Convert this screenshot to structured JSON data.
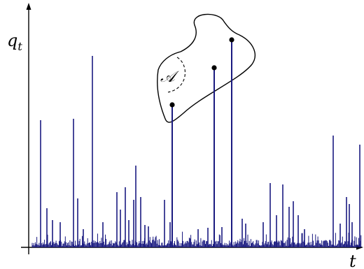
{
  "labels": {
    "y_axis": "q",
    "y_axis_subscript": "t",
    "x_axis": "t",
    "set": "𝒜"
  },
  "colors": {
    "spikes": "#1a1a80",
    "axes": "#000000"
  }
}
